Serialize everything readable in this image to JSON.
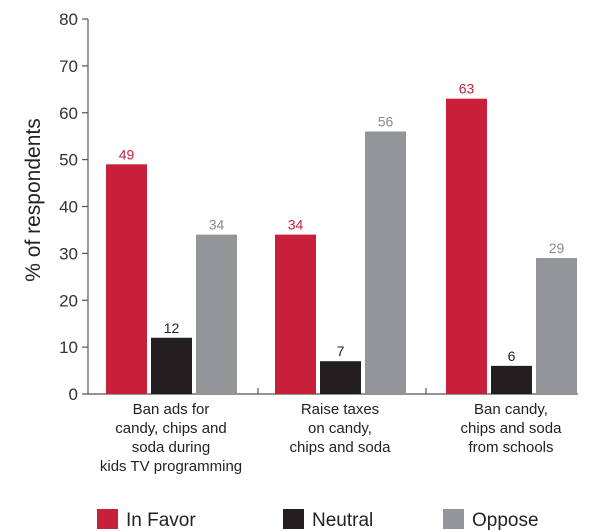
{
  "chart_data": {
    "type": "bar",
    "ylabel": "% of respondents",
    "ylim": [
      0,
      80
    ],
    "yticks": [
      0,
      10,
      20,
      30,
      40,
      50,
      60,
      70,
      80
    ],
    "grid": false,
    "legend_position": "bottom",
    "categories": [
      [
        "Ban ads for",
        "candy, chips and",
        "soda during",
        "kids TV programming"
      ],
      [
        "Raise taxes",
        "on candy,",
        "chips and soda"
      ],
      [
        "Ban candy,",
        "chips and soda",
        "from schools"
      ]
    ],
    "series": [
      {
        "name": "In Favor",
        "color": "#c8203a",
        "label_color": "#c8203a",
        "values": [
          49,
          34,
          63
        ]
      },
      {
        "name": "Neutral",
        "color": "#231f20",
        "label_color": "#231f20",
        "values": [
          12,
          7,
          6
        ]
      },
      {
        "name": "Oppose",
        "color": "#939598",
        "label_color": "#8a8a8a",
        "values": [
          34,
          56,
          29
        ]
      }
    ]
  }
}
